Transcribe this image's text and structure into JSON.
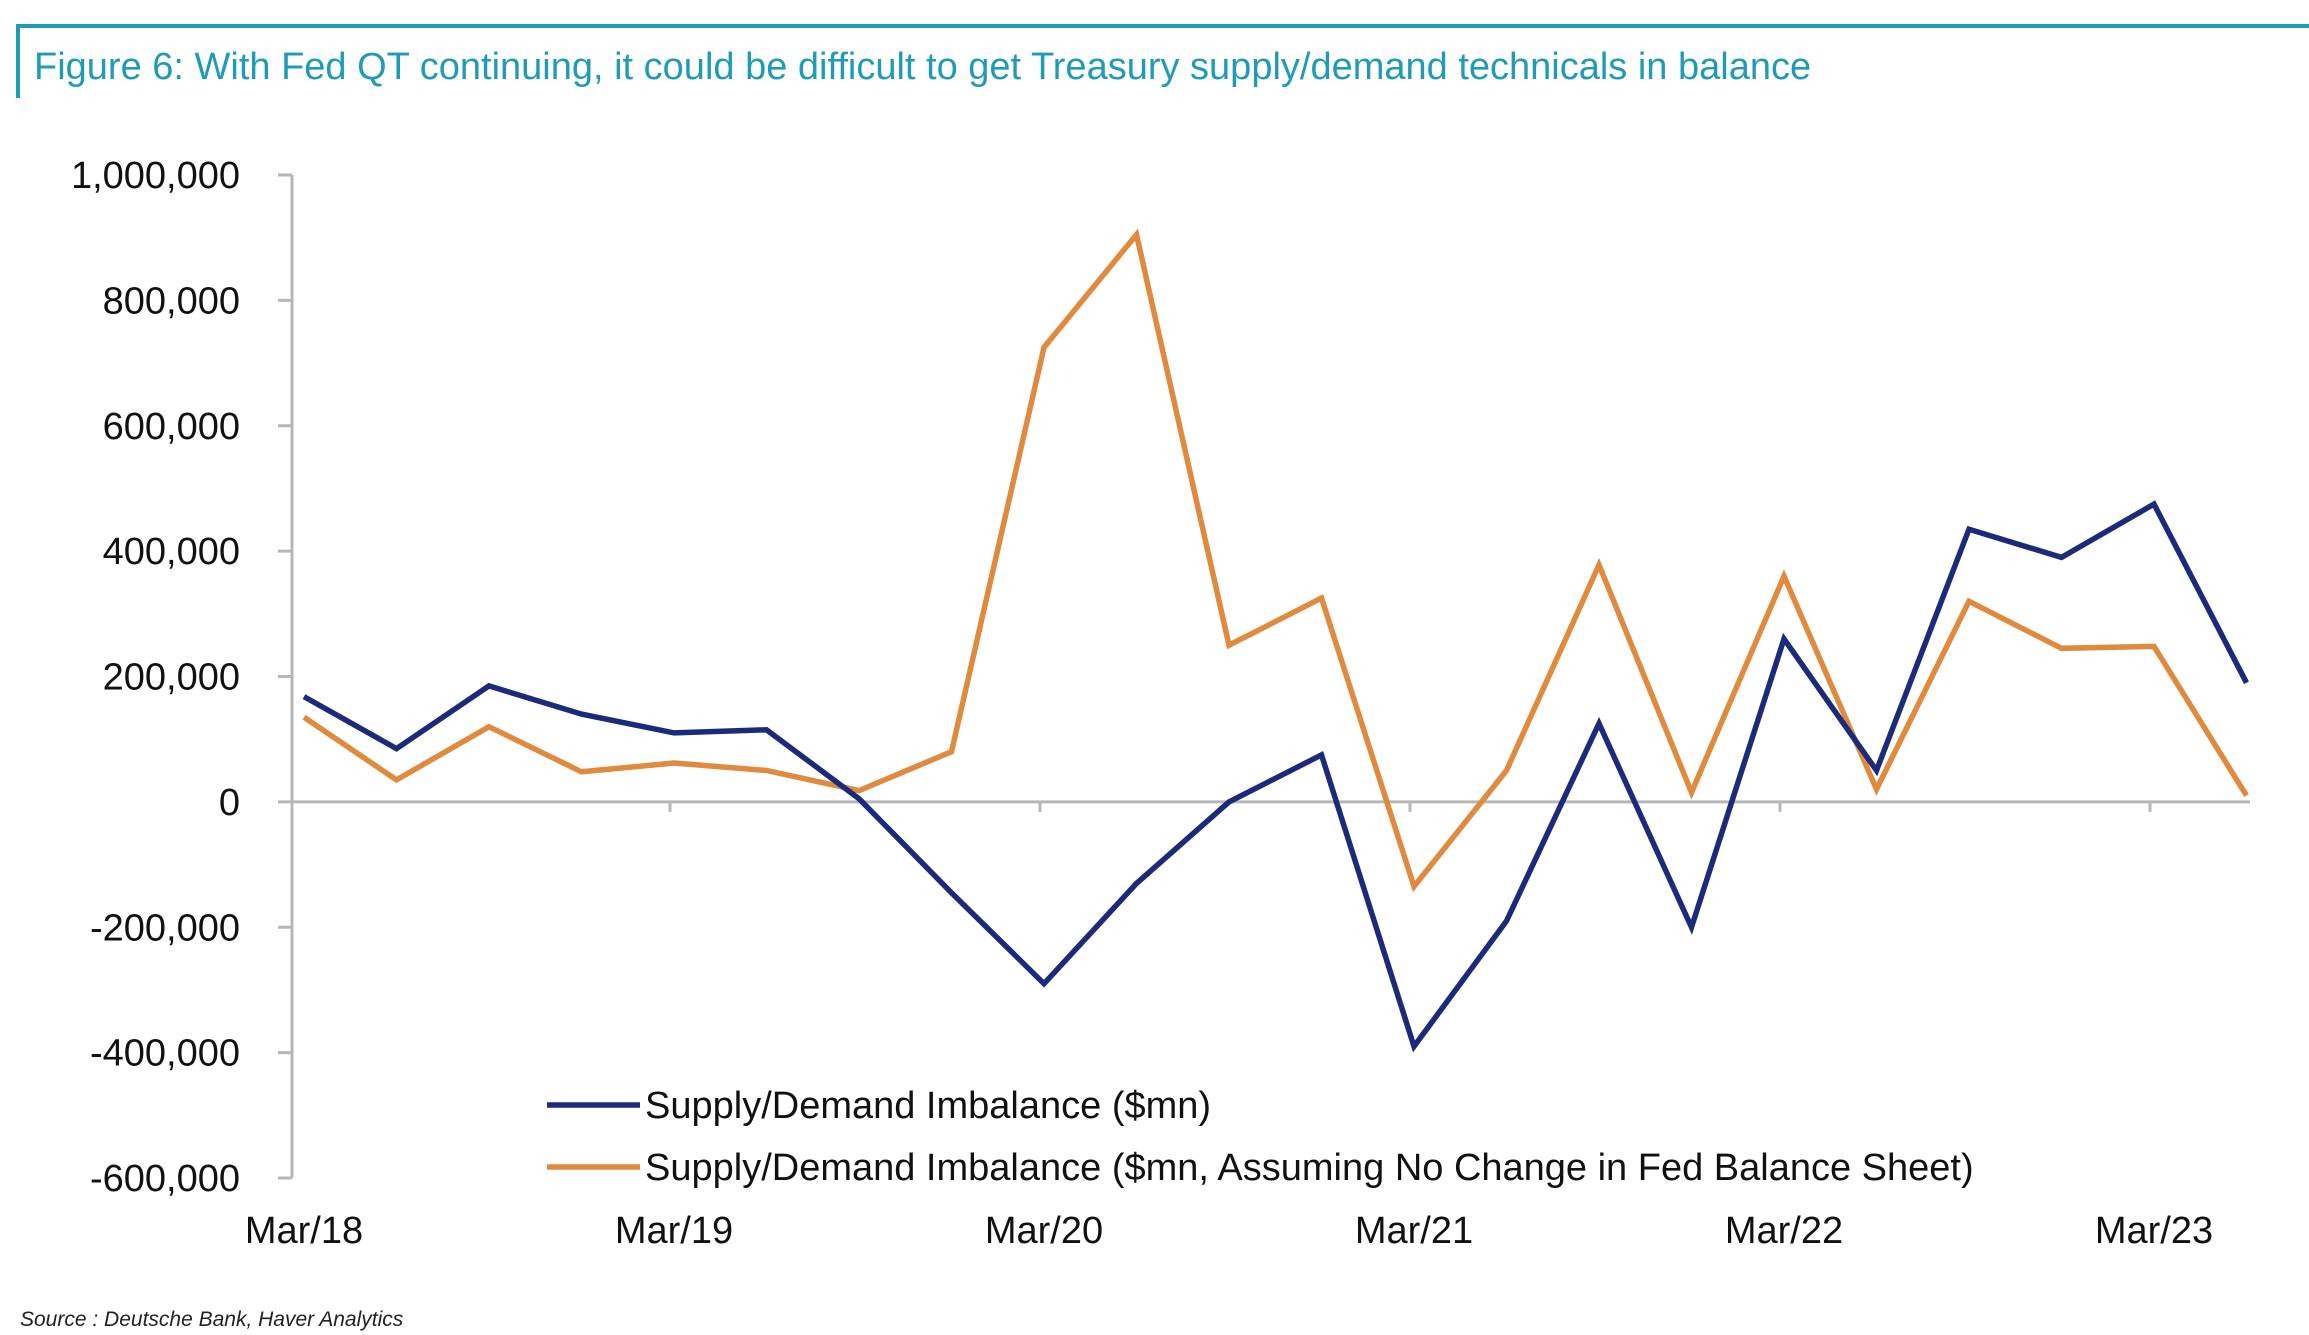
{
  "title": "Figure 6: With Fed QT continuing, it could be difficult to get Treasury supply/demand technicals in balance",
  "source": "Source : Deutsche Bank, Haver Analytics",
  "colors": {
    "accent": "#1f9bb8",
    "series1": "#1b2a7a",
    "series2": "#e08a3e",
    "axis": "#b7b7b7"
  },
  "chart_data": {
    "type": "line",
    "title": "Figure 6: With Fed QT continuing, it could be difficult to get Treasury supply/demand technicals in balance",
    "xlabel": "",
    "ylabel": "",
    "ylim": [
      -600000,
      1000000
    ],
    "yticks": [
      1000000,
      800000,
      600000,
      400000,
      200000,
      0,
      -200000,
      -400000,
      -600000
    ],
    "ytick_labels": [
      "1,000,000",
      "800,000",
      "600,000",
      "400,000",
      "200,000",
      "0",
      "-200,000",
      "-400,000",
      "-600,000"
    ],
    "x": [
      "Mar/18",
      "Jun/18",
      "Sep/18",
      "Dec/18",
      "Mar/19",
      "Jun/19",
      "Sep/19",
      "Dec/19",
      "Mar/20",
      "Jun/20",
      "Sep/20",
      "Dec/20",
      "Mar/21",
      "Jun/21",
      "Sep/21",
      "Dec/21",
      "Mar/22",
      "Jun/22",
      "Sep/22",
      "Dec/22",
      "Mar/23",
      "Jun/23"
    ],
    "xtick_labels": [
      "Mar/18",
      "Mar/19",
      "Mar/20",
      "Mar/21",
      "Mar/22",
      "Mar/23"
    ],
    "series": [
      {
        "name": "Supply/Demand Imbalance ($mn)",
        "values": [
          168000,
          85000,
          185000,
          140000,
          110000,
          115000,
          5000,
          -145000,
          -290000,
          -130000,
          0,
          75000,
          -390000,
          -190000,
          125000,
          -200000,
          260000,
          50000,
          435000,
          390000,
          475000,
          190000
        ]
      },
      {
        "name": "Supply/Demand Imbalance ($mn, Assuming No Change in Fed Balance Sheet)",
        "values": [
          135000,
          35000,
          120000,
          48000,
          62000,
          50000,
          18000,
          80000,
          725000,
          905000,
          250000,
          325000,
          -135000,
          50000,
          378000,
          15000,
          360000,
          20000,
          320000,
          245000,
          248000,
          10000
        ]
      }
    ],
    "grid": false,
    "legend_position": "bottom-center"
  }
}
